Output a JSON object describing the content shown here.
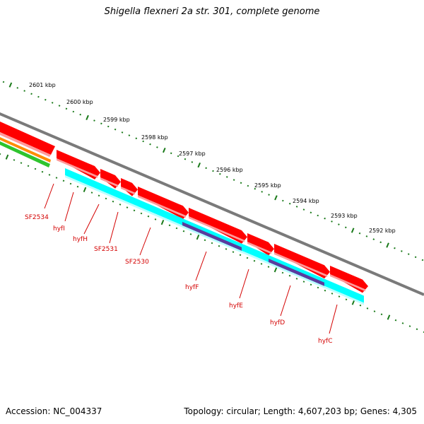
{
  "title": "Shigella flexneri 2a str. 301, complete genome",
  "footer": {
    "accession_label": "Accession:",
    "accession": "NC_004337",
    "summary": "Topology: circular; Length: 4,607,203 bp; Genes: 4,305"
  },
  "colors": {
    "backbone": "#8c8c8c",
    "cds_forward": "#ff0000",
    "cds_forward_shadow": "#ff9a9a",
    "cds_reverse": "#00ffff",
    "cds_reverse_shadow": "#b8ffff",
    "dark_feature": "#5a3c9e",
    "orange_feature": "#ff8c00",
    "green_feature": "#2ec42e",
    "ticks": "#1a7a1a",
    "labels": "#d40000"
  },
  "ruler": [
    {
      "label": "2601 kbp"
    },
    {
      "label": "2600 kbp"
    },
    {
      "label": "2599 kbp"
    },
    {
      "label": "2598 kbp"
    },
    {
      "label": "2597 kbp"
    },
    {
      "label": "2596 kbp"
    },
    {
      "label": "2595 kbp"
    },
    {
      "label": "2594 kbp"
    },
    {
      "label": "2593 kbp"
    },
    {
      "label": "2592 kbp"
    }
  ],
  "genes": [
    {
      "name": "SF2534"
    },
    {
      "name": "hyfI"
    },
    {
      "name": "hyfH"
    },
    {
      "name": "SF2531"
    },
    {
      "name": "SF2530"
    },
    {
      "name": "hyfF"
    },
    {
      "name": "hyfE"
    },
    {
      "name": "hyfD"
    },
    {
      "name": "hyfC"
    }
  ]
}
